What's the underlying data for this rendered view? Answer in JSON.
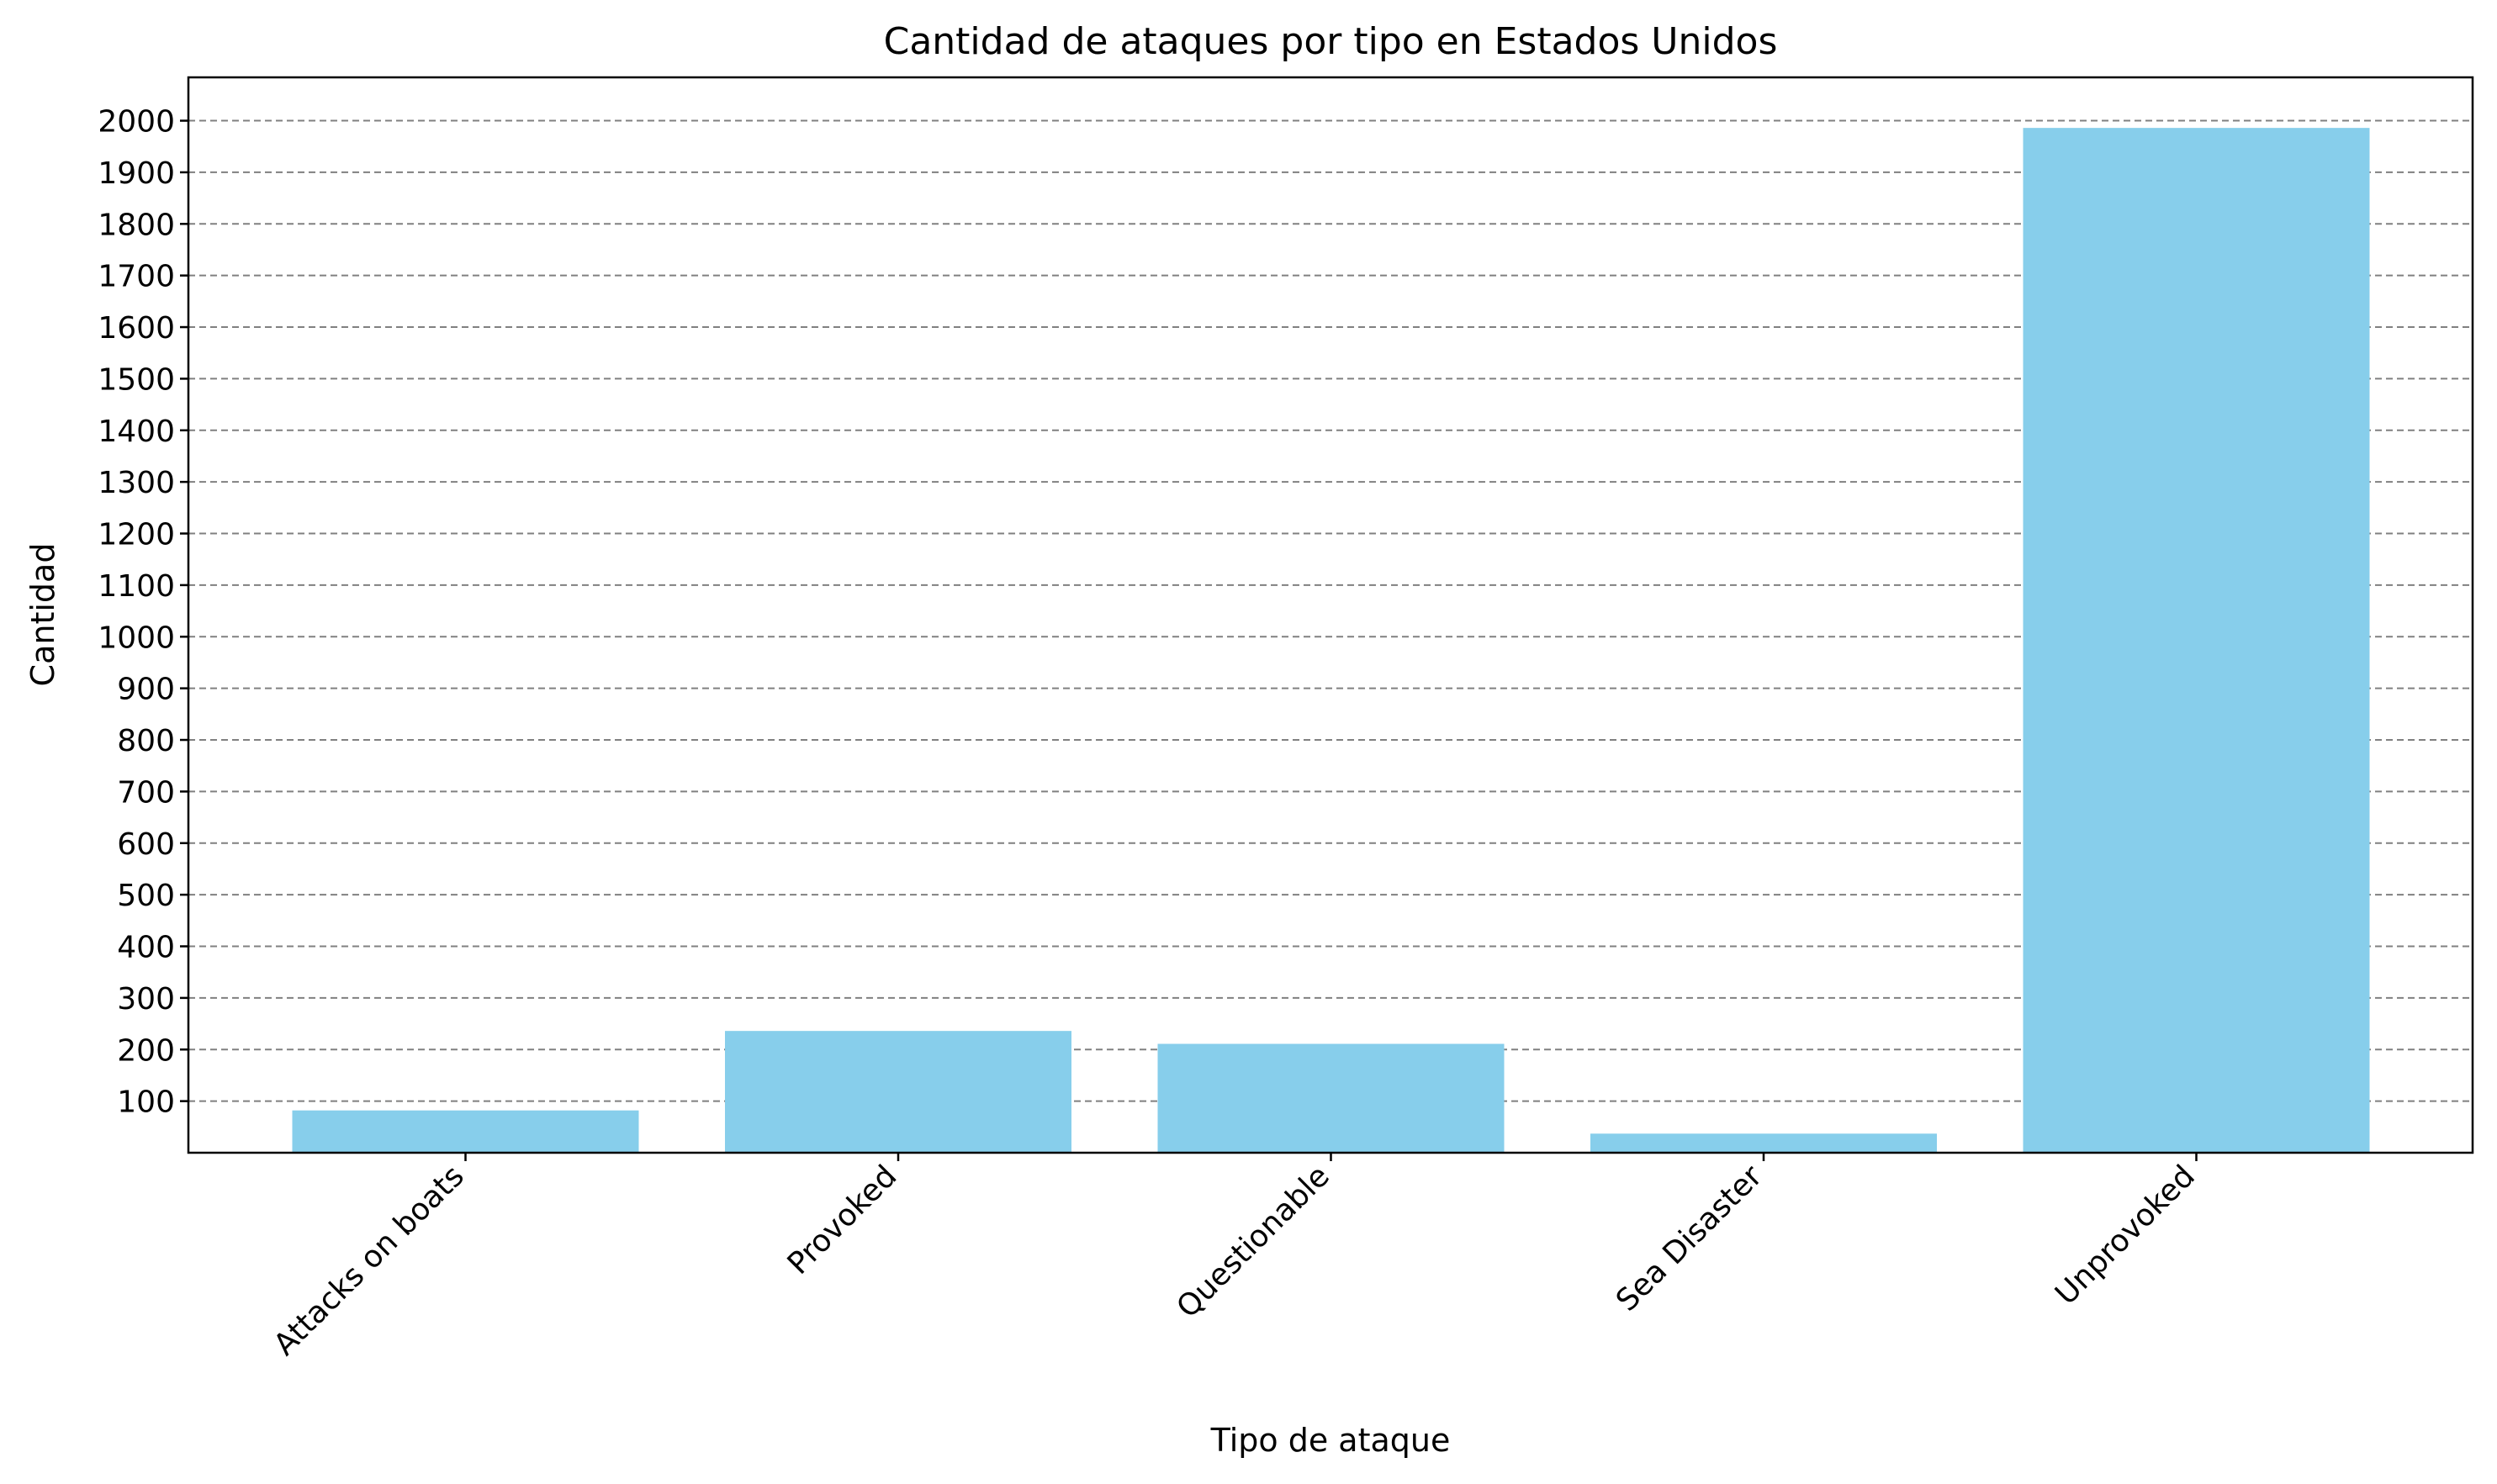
{
  "chart_data": {
    "type": "bar",
    "title": "Cantidad de ataques por tipo en Estados Unidos",
    "xlabel": "Tipo de ataque",
    "ylabel": "Cantidad",
    "categories": [
      "Attacks on boats",
      "Provoked",
      "Questionable",
      "Sea Disaster",
      "Unprovoked"
    ],
    "values": [
      82,
      236,
      211,
      37,
      1986
    ],
    "ylim": [
      0,
      2084
    ],
    "yticks": [
      100,
      200,
      300,
      400,
      500,
      600,
      700,
      800,
      900,
      1000,
      1100,
      1200,
      1300,
      1400,
      1500,
      1600,
      1700,
      1800,
      1900,
      2000
    ],
    "grid": "y-dashed",
    "bar_color": "#87CEEB",
    "grid_color": "#808080",
    "legend": "none"
  }
}
